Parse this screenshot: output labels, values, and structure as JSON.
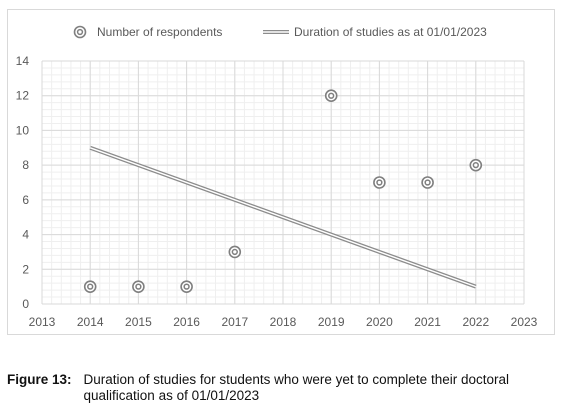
{
  "chart_data": {
    "type": "scatter",
    "x_range": [
      2013,
      2023
    ],
    "y_range": [
      0,
      14
    ],
    "x_ticks": [
      2013,
      2014,
      2015,
      2016,
      2017,
      2018,
      2019,
      2020,
      2021,
      2022,
      2023
    ],
    "y_ticks": [
      0,
      2,
      4,
      6,
      8,
      10,
      12,
      14
    ],
    "grid": true,
    "legend_position": "top",
    "series": [
      {
        "name": "Number of respondents",
        "kind": "scatter",
        "marker": "double-circle",
        "color": "#7f7f7f",
        "points": [
          {
            "x": 2014,
            "y": 1
          },
          {
            "x": 2015,
            "y": 1
          },
          {
            "x": 2016,
            "y": 1
          },
          {
            "x": 2017,
            "y": 3
          },
          {
            "x": 2019,
            "y": 12
          },
          {
            "x": 2020,
            "y": 7
          },
          {
            "x": 2021,
            "y": 7
          },
          {
            "x": 2022,
            "y": 8
          }
        ]
      },
      {
        "name": "Duration of studies as at 01/01/2023",
        "kind": "line",
        "style": "double-line",
        "color": "#8c8c8c",
        "points": [
          {
            "x": 2014,
            "y": 9
          },
          {
            "x": 2022,
            "y": 1
          }
        ]
      }
    ]
  },
  "caption": {
    "label": "Figure 13:",
    "text": "Duration of studies for students who were yet to complete their doctoral qualification as of 01/01/2023"
  }
}
